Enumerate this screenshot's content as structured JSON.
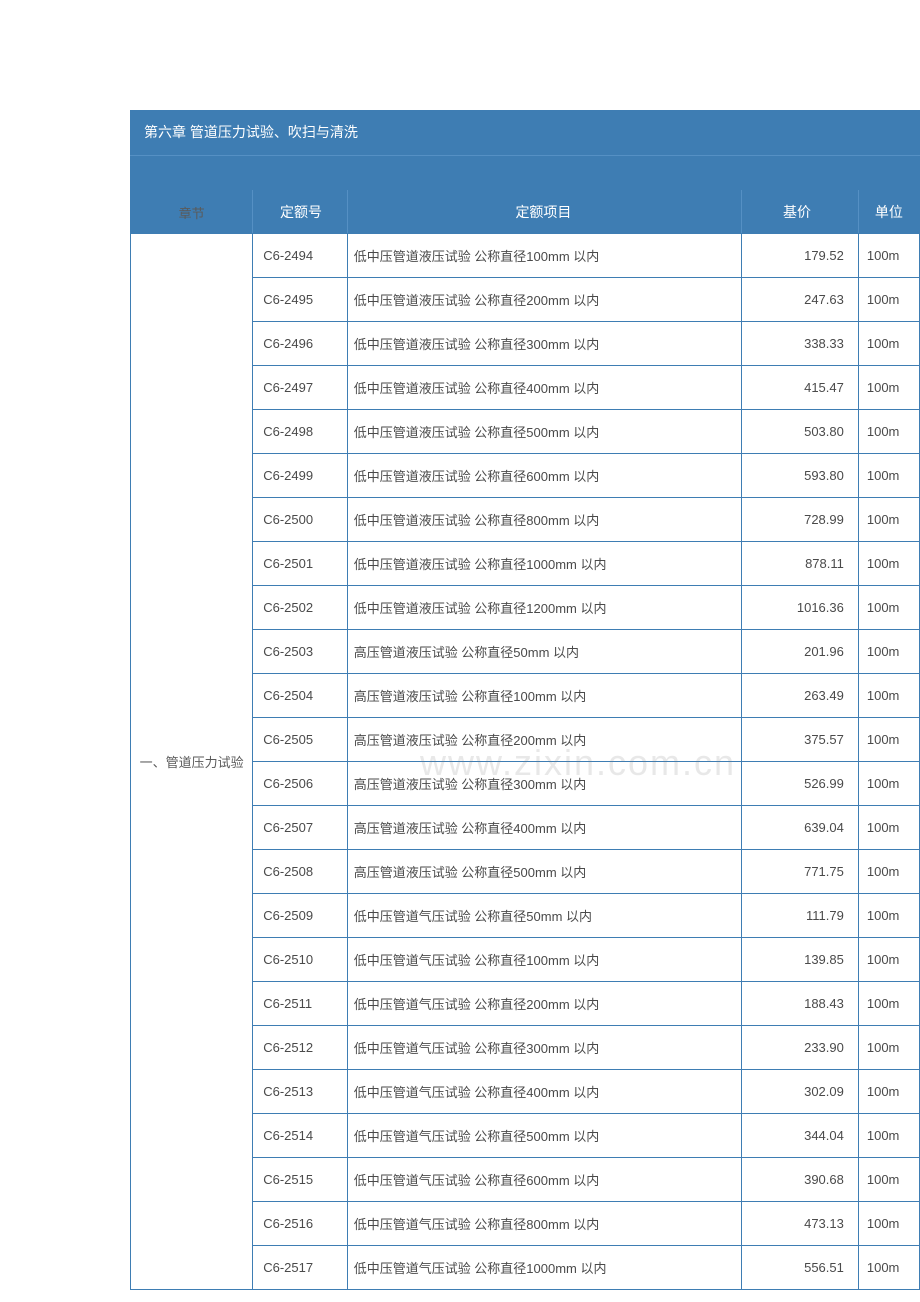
{
  "chapter_title": "第六章 管道压力试验、吹扫与清洗",
  "watermark": "www.zixin.com.cn",
  "headers": {
    "chapter": "章节",
    "code": "定额号",
    "item": "定额项目",
    "price": "基价",
    "unit": "单位"
  },
  "section_label": "一、管道压力试验",
  "rows": [
    {
      "code": "C6-2494",
      "item": "低中压管道液压试验 公称直径100mm 以内",
      "price": "179.52",
      "unit": "100m"
    },
    {
      "code": "C6-2495",
      "item": "低中压管道液压试验 公称直径200mm 以内",
      "price": "247.63",
      "unit": "100m"
    },
    {
      "code": "C6-2496",
      "item": "低中压管道液压试验 公称直径300mm 以内",
      "price": "338.33",
      "unit": "100m"
    },
    {
      "code": "C6-2497",
      "item": "低中压管道液压试验 公称直径400mm 以内",
      "price": "415.47",
      "unit": "100m"
    },
    {
      "code": "C6-2498",
      "item": "低中压管道液压试验 公称直径500mm 以内",
      "price": "503.80",
      "unit": "100m"
    },
    {
      "code": "C6-2499",
      "item": "低中压管道液压试验 公称直径600mm 以内",
      "price": "593.80",
      "unit": "100m"
    },
    {
      "code": "C6-2500",
      "item": "低中压管道液压试验 公称直径800mm 以内",
      "price": "728.99",
      "unit": "100m"
    },
    {
      "code": "C6-2501",
      "item": "低中压管道液压试验 公称直径1000mm 以内",
      "price": "878.11",
      "unit": "100m"
    },
    {
      "code": "C6-2502",
      "item": "低中压管道液压试验 公称直径1200mm 以内",
      "price": "1016.36",
      "unit": "100m"
    },
    {
      "code": "C6-2503",
      "item": "高压管道液压试验 公称直径50mm 以内",
      "price": "201.96",
      "unit": "100m"
    },
    {
      "code": "C6-2504",
      "item": "高压管道液压试验 公称直径100mm 以内",
      "price": "263.49",
      "unit": "100m"
    },
    {
      "code": "C6-2505",
      "item": "高压管道液压试验 公称直径200mm 以内",
      "price": "375.57",
      "unit": "100m"
    },
    {
      "code": "C6-2506",
      "item": "高压管道液压试验 公称直径300mm 以内",
      "price": "526.99",
      "unit": "100m"
    },
    {
      "code": "C6-2507",
      "item": "高压管道液压试验 公称直径400mm 以内",
      "price": "639.04",
      "unit": "100m"
    },
    {
      "code": "C6-2508",
      "item": "高压管道液压试验 公称直径500mm 以内",
      "price": "771.75",
      "unit": "100m"
    },
    {
      "code": "C6-2509",
      "item": "低中压管道气压试验 公称直径50mm 以内",
      "price": "111.79",
      "unit": "100m"
    },
    {
      "code": "C6-2510",
      "item": "低中压管道气压试验 公称直径100mm 以内",
      "price": "139.85",
      "unit": "100m"
    },
    {
      "code": "C6-2511",
      "item": "低中压管道气压试验 公称直径200mm 以内",
      "price": "188.43",
      "unit": "100m"
    },
    {
      "code": "C6-2512",
      "item": "低中压管道气压试验 公称直径300mm 以内",
      "price": "233.90",
      "unit": "100m"
    },
    {
      "code": "C6-2513",
      "item": "低中压管道气压试验 公称直径400mm 以内",
      "price": "302.09",
      "unit": "100m"
    },
    {
      "code": "C6-2514",
      "item": "低中压管道气压试验 公称直径500mm 以内",
      "price": "344.04",
      "unit": "100m"
    },
    {
      "code": "C6-2515",
      "item": "低中压管道气压试验 公称直径600mm 以内",
      "price": "390.68",
      "unit": "100m"
    },
    {
      "code": "C6-2516",
      "item": "低中压管道气压试验 公称直径800mm 以内",
      "price": "473.13",
      "unit": "100m"
    },
    {
      "code": "C6-2517",
      "item": "低中压管道气压试验 公称直径1000mm 以内",
      "price": "556.51",
      "unit": "100m"
    }
  ],
  "colors": {
    "header_bg": "#3e7db3",
    "border": "#3e7db3",
    "header_divider": "#5590c4",
    "text": "#4a4a4a",
    "white": "#ffffff"
  }
}
